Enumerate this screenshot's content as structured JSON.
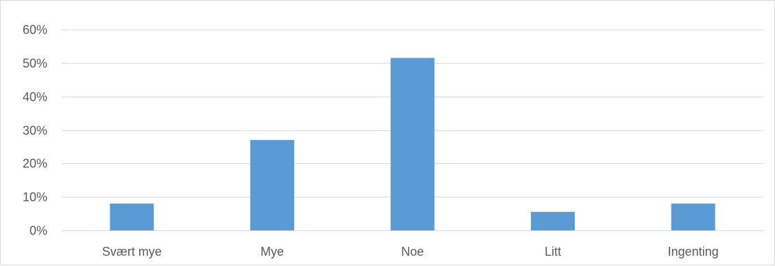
{
  "chart_data": {
    "type": "bar",
    "title": "",
    "xlabel": "",
    "ylabel": "",
    "categories": [
      "Svært mye",
      "Mye",
      "Noe",
      "Litt",
      "Ingenting"
    ],
    "values": [
      8,
      27,
      51.5,
      5.5,
      8
    ],
    "value_unit": "%",
    "ylim": [
      0,
      60
    ],
    "yticks": [
      0,
      10,
      20,
      30,
      40,
      50,
      60
    ],
    "ytick_labels": [
      "0%",
      "10%",
      "20%",
      "30%",
      "40%",
      "50%",
      "60%"
    ],
    "grid": true,
    "legend": "none",
    "bar_color": "#5b9bd5"
  }
}
